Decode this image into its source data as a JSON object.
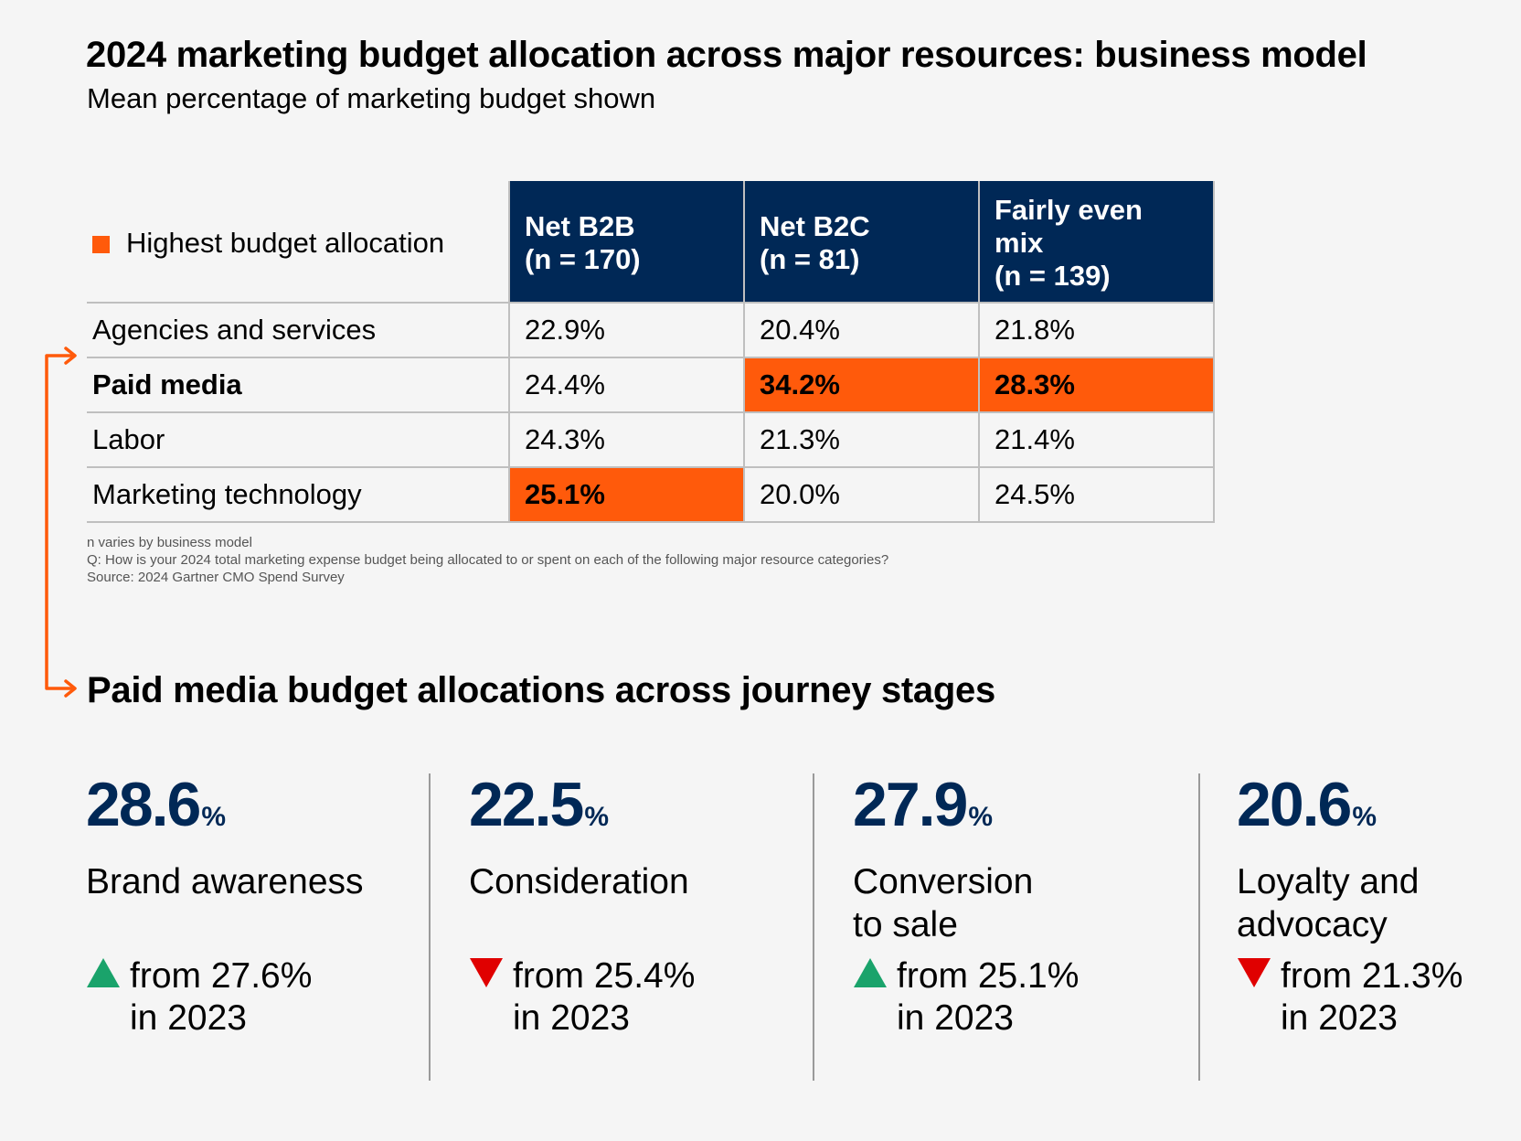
{
  "title": "2024 marketing budget allocation across major resources: business model",
  "subtitle": "Mean percentage of marketing budget shown",
  "legend": {
    "label": "Highest budget allocation",
    "color": "#ff5a0b"
  },
  "colors": {
    "navy": "#002856",
    "highlight": "#ff5a0b",
    "up": "#1aa36b",
    "down": "#e00000"
  },
  "table": {
    "headers": [
      {
        "line1": "Net B2B",
        "line2": "(n = 170)"
      },
      {
        "line1": "Net B2C",
        "line2": "(n = 81)"
      },
      {
        "line1": "Fairly even mix",
        "line2": "(n = 139)"
      }
    ],
    "rows": [
      {
        "label": "Agencies and services",
        "values": [
          "22.9%",
          "20.4%",
          "21.8%"
        ]
      },
      {
        "label": "Paid media",
        "values": [
          "24.4%",
          "34.2%",
          "28.3%"
        ]
      },
      {
        "label": "Labor",
        "values": [
          "24.3%",
          "21.3%",
          "21.4%"
        ]
      },
      {
        "label": "Marketing technology",
        "values": [
          "25.1%",
          "20.0%",
          "24.5%"
        ]
      }
    ]
  },
  "notes": {
    "line1": "n varies by business model",
    "line2": "Q: How is your 2024 total marketing expense budget being allocated to or spent on each of the following major resource categories?",
    "line3": "Source: 2024 Gartner CMO Spend Survey"
  },
  "section_title": "Paid media budget allocations across journey stages",
  "stats": [
    {
      "value": "28.6",
      "unit": "%",
      "label1": "Brand awareness",
      "label2": "",
      "direction": "up",
      "change1": "from 27.6%",
      "change2": "in 2023"
    },
    {
      "value": "22.5",
      "unit": "%",
      "label1": "Consideration",
      "label2": "",
      "direction": "down",
      "change1": "from 25.4%",
      "change2": "in 2023"
    },
    {
      "value": "27.9",
      "unit": "%",
      "label1": "Conversion",
      "label2": "to sale",
      "direction": "up",
      "change1": "from 25.1%",
      "change2": "in 2023"
    },
    {
      "value": "20.6",
      "unit": "%",
      "label1": "Loyalty and",
      "label2": "advocacy",
      "direction": "down",
      "change1": "from 21.3%",
      "change2": "in 2023"
    }
  ],
  "chart_data": {
    "type": "table",
    "title": "2024 marketing budget allocation across major resources: business model",
    "subtitle": "Mean percentage of marketing budget shown",
    "columns": [
      "Net B2B (n = 170)",
      "Net B2C (n = 81)",
      "Fairly even mix (n = 139)"
    ],
    "rows": [
      "Agencies and services",
      "Paid media",
      "Labor",
      "Marketing technology"
    ],
    "series": [
      {
        "name": "Net B2B (n = 170)",
        "values": [
          22.9,
          24.4,
          24.3,
          25.1
        ]
      },
      {
        "name": "Net B2C (n = 81)",
        "values": [
          20.4,
          34.2,
          21.3,
          20.0
        ]
      },
      {
        "name": "Fairly even mix (n = 139)",
        "values": [
          21.8,
          28.3,
          21.4,
          24.5
        ]
      }
    ],
    "highlighted": [
      {
        "row": "Marketing technology",
        "column": "Net B2B (n = 170)"
      },
      {
        "row": "Paid media",
        "column": "Net B2C (n = 81)"
      },
      {
        "row": "Paid media",
        "column": "Fairly even mix (n = 139)"
      }
    ],
    "journey_stages": {
      "title": "Paid media budget allocations across journey stages",
      "categories": [
        "Brand awareness",
        "Consideration",
        "Conversion to sale",
        "Loyalty and advocacy"
      ],
      "values_2024": [
        28.6,
        22.5,
        27.9,
        20.6
      ],
      "values_2023": [
        27.6,
        25.4,
        25.1,
        21.3
      ]
    }
  }
}
